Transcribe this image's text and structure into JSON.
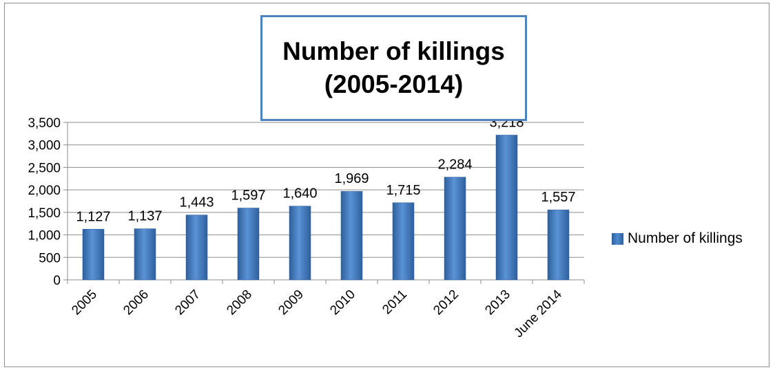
{
  "chart_data": {
    "type": "bar",
    "title_lines": [
      "Number of killings",
      "(2005-2014)"
    ],
    "categories": [
      "2005",
      "2006",
      "2007",
      "2008",
      "2009",
      "2010",
      "2011",
      "2012",
      "2013",
      "June 2014"
    ],
    "series": [
      {
        "name": "Number of killings",
        "values": [
          1127,
          1137,
          1443,
          1597,
          1640,
          1969,
          1715,
          2284,
          3218,
          1557
        ],
        "labels": [
          "1,127",
          "1,137",
          "1,443",
          "1,597",
          "1,640",
          "1,969",
          "1,715",
          "2,284",
          "3,218",
          "1,557"
        ]
      }
    ],
    "ylim": [
      0,
      3500
    ],
    "yticks": [
      0,
      500,
      1000,
      1500,
      2000,
      2500,
      3000,
      3500
    ],
    "ytick_labels": [
      "0",
      "500",
      "1,000",
      "1,500",
      "2,000",
      "2,500",
      "3,000",
      "3,500"
    ],
    "grid": true,
    "legend_position": "right",
    "colors": {
      "bar": "#3d73b8",
      "bar_edge": "#2e5f9c",
      "title_border": "#4f81bd",
      "grid": "#8c8c8c"
    }
  }
}
